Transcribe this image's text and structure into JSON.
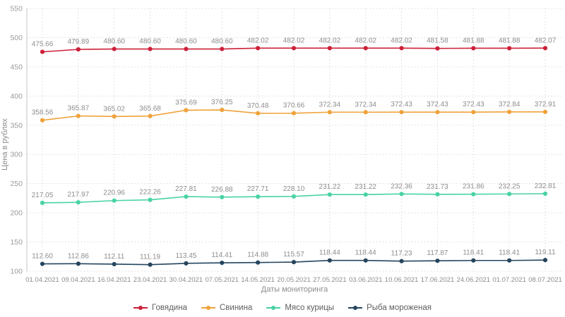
{
  "chart_data": {
    "type": "line",
    "title": "",
    "xlabel": "Даты мониторинга",
    "ylabel": "Цена в рублях",
    "ylim": [
      100,
      550
    ],
    "ytick_step": 50,
    "grid": true,
    "legend_position": "bottom",
    "point_labels": true,
    "categories": [
      "01.04.2021",
      "09.04.2021",
      "16.04.2021",
      "23.04.2021",
      "30.04.2021",
      "07.05.2021",
      "14.05.2021",
      "20.05.2021",
      "27.05.2021",
      "03.06.2021",
      "10.06.2021",
      "17.06.2021",
      "24.06.2021",
      "01.07.2021",
      "08.07.2021"
    ],
    "series": [
      {
        "name": "Говядина",
        "color": "#cc2038",
        "values": [
          475.66,
          479.89,
          480.6,
          480.6,
          480.6,
          480.6,
          482.02,
          482.02,
          482.02,
          482.02,
          482.02,
          481.58,
          481.88,
          481.88,
          482.07
        ]
      },
      {
        "name": "Свинина",
        "color": "#efa23b",
        "values": [
          358.56,
          365.87,
          365.02,
          365.68,
          375.69,
          376.25,
          370.48,
          370.66,
          372.34,
          372.34,
          372.43,
          372.43,
          372.43,
          372.84,
          372.91
        ]
      },
      {
        "name": "Мясо курицы",
        "color": "#49d3a4",
        "values": [
          217.05,
          217.97,
          220.96,
          222.26,
          227.81,
          226.88,
          227.71,
          228.1,
          231.22,
          231.22,
          232.36,
          231.73,
          231.86,
          232.25,
          232.81
        ]
      },
      {
        "name": "Рыба мороженая",
        "color": "#25455e",
        "values": [
          112.6,
          112.86,
          112.11,
          111.19,
          113.45,
          114.41,
          114.88,
          115.57,
          118.44,
          118.44,
          117.23,
          117.87,
          118.41,
          118.41,
          119.11
        ]
      }
    ]
  }
}
